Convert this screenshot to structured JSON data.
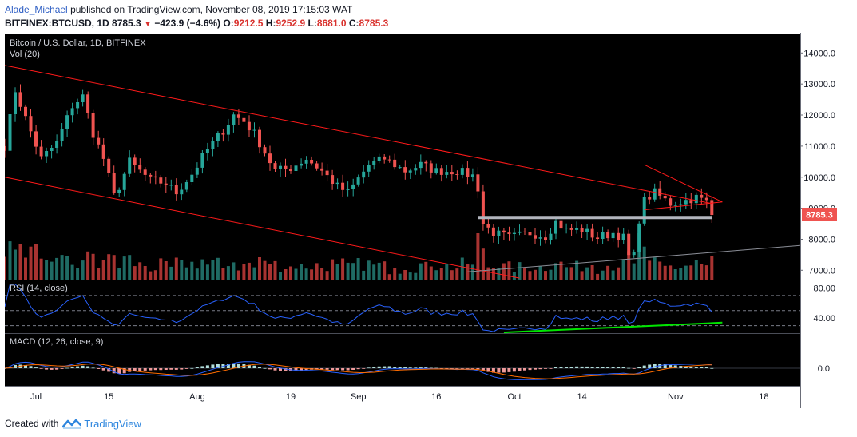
{
  "header": {
    "author": "Alade_Michael",
    "published": "published on TradingView.com, November 08, 2019 17:15:03 WAT",
    "symbol": "BITFINEX:BTCUSD, 1D",
    "last": "8785.3",
    "change": "−423.9 (−4.6%)",
    "o_label": "O:",
    "o_val": "9212.5",
    "h_label": "H:",
    "h_val": "9252.9",
    "l_label": "L:",
    "l_val": "8681.0",
    "c_label": "C:",
    "c_val": "8785.3"
  },
  "footer": {
    "created_with": "Created with",
    "brand": "TradingView"
  },
  "colors": {
    "panel_bg": "#000000",
    "scale_bg": "#ffffff",
    "border": "#6a6d78",
    "up": "#26a69a",
    "down": "#ef5350",
    "up_vol": "#1f6b64",
    "down_vol": "#a83331",
    "trendline": "#ff1a1a",
    "support": "#b2b5be",
    "rsi": "#2962ff",
    "rsi_support": "#00e600",
    "macd": "#2962ff",
    "signal": "#ff6d00",
    "price_tag": "#ef5350"
  },
  "chart_data": [
    {
      "type": "candlestick",
      "title": "Bitcoin / U.S. Dollar, 1D, BITFINEX",
      "volume_label": "Vol (20)",
      "ylim": [
        6700,
        14600
      ],
      "yticks": [
        "14000.0",
        "13000.0",
        "12000.0",
        "11000.0",
        "10000.0",
        "9000.0",
        "8000.0",
        "7000.0"
      ],
      "price_label": "8785.3",
      "x_labels": [
        {
          "label": "Jul",
          "date": "2019-07-01"
        },
        {
          "label": "15",
          "date": "2019-07-15"
        },
        {
          "label": "Aug",
          "date": "2019-08-01"
        },
        {
          "label": "19",
          "date": "2019-08-19"
        },
        {
          "label": "Sep",
          "date": "2019-09-01"
        },
        {
          "label": "16",
          "date": "2019-09-16"
        },
        {
          "label": "Oct",
          "date": "2019-10-01"
        },
        {
          "label": "14",
          "date": "2019-10-14"
        },
        {
          "label": "Nov",
          "date": "2019-11-01"
        },
        {
          "label": "18",
          "date": "2019-11-18"
        }
      ],
      "xlim": [
        "2019-06-25",
        "2019-11-25"
      ],
      "close_keypoints": [
        [
          "2019-06-25",
          11000
        ],
        [
          "2019-06-27",
          12800
        ],
        [
          "2019-06-29",
          11900
        ],
        [
          "2019-07-02",
          10600
        ],
        [
          "2019-07-05",
          11100
        ],
        [
          "2019-07-08",
          12300
        ],
        [
          "2019-07-10",
          12600
        ],
        [
          "2019-07-12",
          11400
        ],
        [
          "2019-07-14",
          10600
        ],
        [
          "2019-07-16",
          9400
        ],
        [
          "2019-07-17",
          9700
        ],
        [
          "2019-07-19",
          10500
        ],
        [
          "2019-07-23",
          9900
        ],
        [
          "2019-07-26",
          9800
        ],
        [
          "2019-07-28",
          9500
        ],
        [
          "2019-07-31",
          10100
        ],
        [
          "2019-08-03",
          10900
        ],
        [
          "2019-08-06",
          11500
        ],
        [
          "2019-08-08",
          12000
        ],
        [
          "2019-08-10",
          11800
        ],
        [
          "2019-08-12",
          11400
        ],
        [
          "2019-08-14",
          10800
        ],
        [
          "2019-08-16",
          10200
        ],
        [
          "2019-08-19",
          10300
        ],
        [
          "2019-08-22",
          10600
        ],
        [
          "2019-08-25",
          10200
        ],
        [
          "2019-08-28",
          9700
        ],
        [
          "2019-08-30",
          9500
        ],
        [
          "2019-09-03",
          10400
        ],
        [
          "2019-09-06",
          10600
        ],
        [
          "2019-09-10",
          10200
        ],
        [
          "2019-09-13",
          10400
        ],
        [
          "2019-09-16",
          10200
        ],
        [
          "2019-09-20",
          10200
        ],
        [
          "2019-09-23",
          10050
        ],
        [
          "2019-09-24",
          9650
        ],
        [
          "2019-09-25",
          8500
        ],
        [
          "2019-09-27",
          8200
        ],
        [
          "2019-09-30",
          8050
        ],
        [
          "2019-10-04",
          8200
        ],
        [
          "2019-10-07",
          8100
        ],
        [
          "2019-10-09",
          8550
        ],
        [
          "2019-10-11",
          8300
        ],
        [
          "2019-10-14",
          8300
        ],
        [
          "2019-10-17",
          8050
        ],
        [
          "2019-10-20",
          8200
        ],
        [
          "2019-10-22",
          8050
        ],
        [
          "2019-10-23",
          7450
        ],
        [
          "2019-10-24",
          7450
        ],
        [
          "2019-10-25",
          8650
        ],
        [
          "2019-10-26",
          9250
        ],
        [
          "2019-10-28",
          9500
        ],
        [
          "2019-10-31",
          9150
        ],
        [
          "2019-11-03",
          9250
        ],
        [
          "2019-11-05",
          9350
        ],
        [
          "2019-11-07",
          9200
        ],
        [
          "2019-11-08",
          8785
        ]
      ],
      "annotations": [
        {
          "name": "upper-channel",
          "points": [
            [
              "2019-06-25",
              13600
            ],
            [
              "2019-11-08",
              9150
            ]
          ]
        },
        {
          "name": "lower-channel",
          "points": [
            [
              "2019-06-25",
              10000
            ],
            [
              "2019-10-02",
              6750
            ]
          ]
        },
        {
          "name": "support-line",
          "points": [
            [
              "2019-09-24",
              8700
            ],
            [
              "2019-11-08",
              8700
            ]
          ]
        },
        {
          "name": "rising-line",
          "points": [
            [
              "2019-09-22",
              6950
            ],
            [
              "2019-11-25",
              7800
            ]
          ]
        },
        {
          "name": "triangle-upper",
          "points": [
            [
              "2019-10-26",
              10400
            ],
            [
              "2019-11-10",
              9200
            ]
          ]
        },
        {
          "name": "triangle-lower",
          "points": [
            [
              "2019-10-26",
              8950
            ],
            [
              "2019-11-10",
              9200
            ]
          ]
        }
      ]
    },
    {
      "type": "line",
      "title": "RSI (14, close)",
      "ylim": [
        20,
        90
      ],
      "yticks": [
        "80.00",
        "40.00"
      ],
      "levels": [
        70,
        50,
        30
      ],
      "support_line": [
        [
          "2019-09-29",
          21
        ],
        [
          "2019-11-10",
          34
        ]
      ]
    },
    {
      "type": "histogram",
      "title": "MACD (12, 26, close, 9)",
      "yticks": [
        "0.0"
      ],
      "series": [
        "macd",
        "signal"
      ]
    }
  ]
}
